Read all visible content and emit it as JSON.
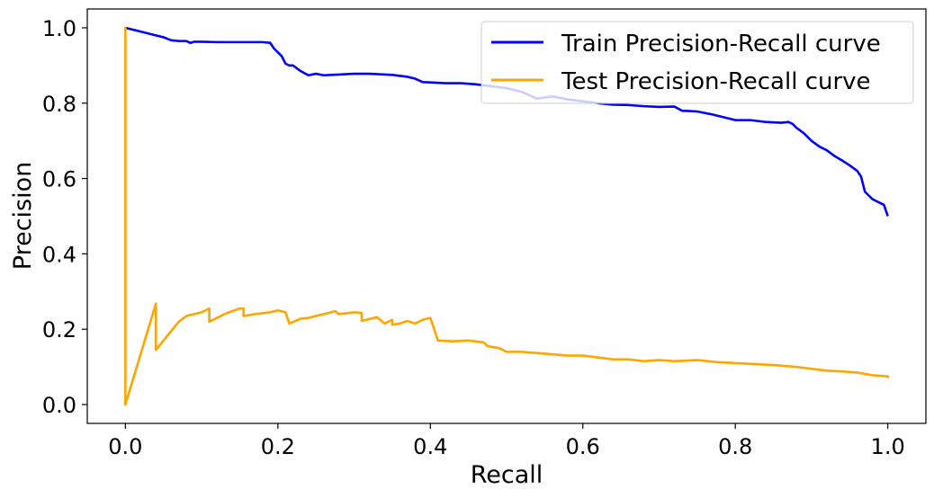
{
  "chart_data": {
    "type": "line",
    "title": "",
    "xlabel": "Recall",
    "ylabel": "Precision",
    "xlim": [
      -0.05,
      1.05
    ],
    "ylim": [
      -0.05,
      1.05
    ],
    "xticks": [
      "0.0",
      "0.2",
      "0.4",
      "0.6",
      "0.8",
      "1.0"
    ],
    "yticks": [
      "0.0",
      "0.2",
      "0.4",
      "0.6",
      "0.8",
      "1.0"
    ],
    "grid": false,
    "legend_position": "top-right",
    "series": [
      {
        "name": "Train Precision-Recall curve",
        "color": "#0000ff",
        "x": [
          0.0,
          0.01,
          0.02,
          0.03,
          0.04,
          0.05,
          0.06,
          0.07,
          0.08,
          0.085,
          0.09,
          0.1,
          0.12,
          0.15,
          0.18,
          0.19,
          0.195,
          0.2,
          0.205,
          0.21,
          0.215,
          0.22,
          0.23,
          0.24,
          0.25,
          0.26,
          0.28,
          0.3,
          0.32,
          0.35,
          0.37,
          0.38,
          0.39,
          0.4,
          0.42,
          0.44,
          0.46,
          0.48,
          0.5,
          0.52,
          0.54,
          0.56,
          0.58,
          0.6,
          0.62,
          0.64,
          0.66,
          0.68,
          0.7,
          0.72,
          0.73,
          0.75,
          0.77,
          0.79,
          0.8,
          0.82,
          0.84,
          0.86,
          0.87,
          0.875,
          0.88,
          0.89,
          0.9,
          0.91,
          0.92,
          0.93,
          0.94,
          0.95,
          0.96,
          0.965,
          0.97,
          0.98,
          0.99,
          0.995,
          1.0
        ],
        "y": [
          1.0,
          0.995,
          0.99,
          0.985,
          0.98,
          0.975,
          0.967,
          0.965,
          0.965,
          0.96,
          0.963,
          0.963,
          0.962,
          0.962,
          0.962,
          0.96,
          0.945,
          0.935,
          0.925,
          0.905,
          0.9,
          0.9,
          0.885,
          0.874,
          0.878,
          0.874,
          0.876,
          0.878,
          0.878,
          0.875,
          0.87,
          0.865,
          0.856,
          0.855,
          0.853,
          0.853,
          0.85,
          0.845,
          0.84,
          0.83,
          0.812,
          0.818,
          0.81,
          0.805,
          0.8,
          0.796,
          0.795,
          0.792,
          0.79,
          0.791,
          0.78,
          0.778,
          0.77,
          0.76,
          0.755,
          0.755,
          0.75,
          0.748,
          0.75,
          0.745,
          0.735,
          0.72,
          0.7,
          0.685,
          0.675,
          0.66,
          0.648,
          0.635,
          0.62,
          0.605,
          0.565,
          0.545,
          0.535,
          0.53,
          0.5
        ]
      },
      {
        "name": "Test Precision-Recall curve",
        "color": "#ffa500",
        "x": [
          0.0,
          0.0,
          0.0,
          0.04,
          0.04,
          0.05,
          0.06,
          0.07,
          0.08,
          0.09,
          0.1,
          0.11,
          0.11,
          0.12,
          0.13,
          0.14,
          0.15,
          0.155,
          0.155,
          0.17,
          0.19,
          0.2,
          0.21,
          0.215,
          0.215,
          0.23,
          0.24,
          0.25,
          0.26,
          0.27,
          0.275,
          0.28,
          0.3,
          0.31,
          0.31,
          0.33,
          0.34,
          0.35,
          0.35,
          0.36,
          0.37,
          0.38,
          0.39,
          0.4,
          0.41,
          0.41,
          0.43,
          0.45,
          0.47,
          0.475,
          0.49,
          0.5,
          0.52,
          0.55,
          0.58,
          0.6,
          0.62,
          0.64,
          0.66,
          0.68,
          0.7,
          0.72,
          0.75,
          0.78,
          0.8,
          0.82,
          0.85,
          0.88,
          0.9,
          0.92,
          0.94,
          0.96,
          0.98,
          1.0,
          1.0
        ],
        "y": [
          0.0,
          1.0,
          0.0,
          0.268,
          0.145,
          0.17,
          0.195,
          0.22,
          0.235,
          0.24,
          0.245,
          0.255,
          0.22,
          0.23,
          0.24,
          0.248,
          0.255,
          0.255,
          0.235,
          0.24,
          0.245,
          0.25,
          0.245,
          0.215,
          0.215,
          0.228,
          0.23,
          0.235,
          0.24,
          0.245,
          0.248,
          0.24,
          0.245,
          0.243,
          0.222,
          0.232,
          0.215,
          0.225,
          0.212,
          0.215,
          0.222,
          0.215,
          0.225,
          0.23,
          0.17,
          0.17,
          0.168,
          0.17,
          0.165,
          0.155,
          0.15,
          0.14,
          0.14,
          0.135,
          0.13,
          0.13,
          0.125,
          0.12,
          0.12,
          0.115,
          0.118,
          0.115,
          0.118,
          0.112,
          0.11,
          0.108,
          0.105,
          0.1,
          0.095,
          0.09,
          0.088,
          0.085,
          0.078,
          0.075,
          0.07
        ]
      }
    ]
  }
}
